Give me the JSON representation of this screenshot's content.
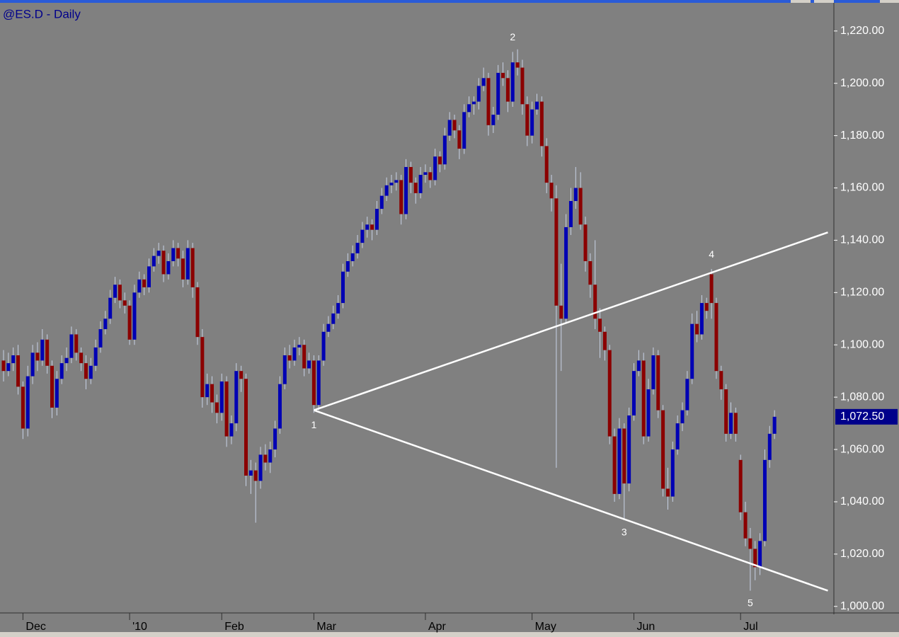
{
  "chart_data": {
    "type": "candlestick",
    "title": "@ES.D - Daily",
    "categories": [
      null,
      null,
      null,
      null,
      "Dec",
      null,
      null,
      null,
      null,
      null,
      null,
      null,
      null,
      null,
      null,
      null,
      null,
      null,
      null,
      null,
      null,
      null,
      null,
      null,
      null,
      null,
      "'10",
      null,
      null,
      null,
      null,
      null,
      null,
      null,
      null,
      null,
      null,
      null,
      null,
      null,
      null,
      null,
      null,
      null,
      null,
      "Feb",
      null,
      null,
      null,
      null,
      null,
      null,
      null,
      null,
      null,
      null,
      null,
      null,
      null,
      null,
      null,
      null,
      null,
      null,
      "Mar",
      null,
      null,
      null,
      null,
      null,
      null,
      null,
      null,
      null,
      null,
      null,
      null,
      null,
      null,
      null,
      null,
      null,
      null,
      null,
      null,
      null,
      null,
      "Apr",
      null,
      null,
      null,
      null,
      null,
      null,
      null,
      null,
      null,
      null,
      null,
      null,
      null,
      null,
      null,
      null,
      null,
      null,
      null,
      null,
      null,
      "May",
      null,
      null,
      null,
      null,
      null,
      null,
      null,
      null,
      null,
      null,
      null,
      null,
      null,
      null,
      null,
      null,
      null,
      null,
      null,
      null,
      "Jun",
      null,
      null,
      null,
      null,
      null,
      null,
      null,
      null,
      null,
      null,
      null,
      null,
      null,
      null,
      null,
      null,
      null,
      null,
      null,
      null,
      null,
      "Jul",
      null,
      null,
      null,
      null,
      null,
      null,
      null
    ],
    "ohlc": [
      [
        1094,
        1098,
        1086,
        1090
      ],
      [
        1090,
        1097,
        1088,
        1093
      ],
      [
        1093,
        1099,
        1090,
        1096
      ],
      [
        1096,
        1100,
        1081,
        1084
      ],
      [
        1084,
        1086,
        1064,
        1068
      ],
      [
        1068,
        1092,
        1065,
        1088
      ],
      [
        1088,
        1100,
        1085,
        1097
      ],
      [
        1097,
        1101,
        1090,
        1094
      ],
      [
        1094,
        1106,
        1092,
        1102
      ],
      [
        1102,
        1104,
        1089,
        1092
      ],
      [
        1092,
        1094,
        1072,
        1076
      ],
      [
        1076,
        1090,
        1073,
        1087
      ],
      [
        1087,
        1096,
        1085,
        1093
      ],
      [
        1093,
        1099,
        1090,
        1095
      ],
      [
        1095,
        1107,
        1093,
        1104
      ],
      [
        1104,
        1106,
        1094,
        1097
      ],
      [
        1097,
        1099,
        1090,
        1093
      ],
      [
        1093,
        1096,
        1083,
        1087
      ],
      [
        1087,
        1095,
        1085,
        1092
      ],
      [
        1092,
        1102,
        1090,
        1099
      ],
      [
        1099,
        1109,
        1097,
        1106
      ],
      [
        1106,
        1113,
        1104,
        1110
      ],
      [
        1110,
        1121,
        1108,
        1118
      ],
      [
        1118,
        1126,
        1116,
        1123
      ],
      [
        1123,
        1125,
        1114,
        1117
      ],
      [
        1117,
        1120,
        1112,
        1115
      ],
      [
        1115,
        1117,
        1100,
        1102
      ],
      [
        1102,
        1123,
        1100,
        1120
      ],
      [
        1120,
        1128,
        1118,
        1125
      ],
      [
        1125,
        1127,
        1119,
        1122
      ],
      [
        1122,
        1133,
        1120,
        1130
      ],
      [
        1130,
        1137,
        1128,
        1134
      ],
      [
        1134,
        1139,
        1131,
        1136
      ],
      [
        1136,
        1138,
        1124,
        1127
      ],
      [
        1127,
        1135,
        1125,
        1132
      ],
      [
        1132,
        1140,
        1130,
        1137
      ],
      [
        1137,
        1139,
        1130,
        1133
      ],
      [
        1133,
        1136,
        1122,
        1125
      ],
      [
        1125,
        1140,
        1123,
        1137
      ],
      [
        1137,
        1139,
        1118,
        1122
      ],
      [
        1122,
        1124,
        1100,
        1103
      ],
      [
        1103,
        1106,
        1076,
        1080
      ],
      [
        1080,
        1089,
        1077,
        1085
      ],
      [
        1085,
        1088,
        1074,
        1078
      ],
      [
        1078,
        1081,
        1070,
        1074
      ],
      [
        1074,
        1089,
        1071,
        1086
      ],
      [
        1086,
        1088,
        1061,
        1065
      ],
      [
        1065,
        1073,
        1062,
        1070
      ],
      [
        1070,
        1093,
        1067,
        1090
      ],
      [
        1090,
        1092,
        1082,
        1087
      ],
      [
        1087,
        1089,
        1046,
        1050
      ],
      [
        1050,
        1056,
        1043,
        1052
      ],
      [
        1052,
        1055,
        1032,
        1048
      ],
      [
        1048,
        1061,
        1045,
        1058
      ],
      [
        1058,
        1062,
        1052,
        1055
      ],
      [
        1055,
        1063,
        1051,
        1060
      ],
      [
        1060,
        1071,
        1057,
        1068
      ],
      [
        1068,
        1088,
        1066,
        1085
      ],
      [
        1085,
        1099,
        1083,
        1096
      ],
      [
        1096,
        1100,
        1091,
        1094
      ],
      [
        1094,
        1102,
        1092,
        1099
      ],
      [
        1099,
        1103,
        1096,
        1100
      ],
      [
        1100,
        1102,
        1088,
        1091
      ],
      [
        1091,
        1097,
        1089,
        1094
      ],
      [
        1094,
        1096,
        1074,
        1077
      ],
      [
        1077,
        1096,
        1075,
        1094
      ],
      [
        1094,
        1108,
        1092,
        1105
      ],
      [
        1105,
        1111,
        1103,
        1108
      ],
      [
        1108,
        1115,
        1106,
        1112
      ],
      [
        1112,
        1119,
        1110,
        1116
      ],
      [
        1116,
        1131,
        1114,
        1128
      ],
      [
        1128,
        1135,
        1126,
        1132
      ],
      [
        1132,
        1138,
        1130,
        1135
      ],
      [
        1135,
        1142,
        1133,
        1139
      ],
      [
        1139,
        1147,
        1137,
        1144
      ],
      [
        1144,
        1149,
        1141,
        1146
      ],
      [
        1146,
        1148,
        1140,
        1144
      ],
      [
        1144,
        1155,
        1142,
        1152
      ],
      [
        1152,
        1160,
        1150,
        1157
      ],
      [
        1157,
        1164,
        1155,
        1161
      ],
      [
        1161,
        1165,
        1158,
        1162
      ],
      [
        1162,
        1166,
        1159,
        1163
      ],
      [
        1163,
        1165,
        1146,
        1150
      ],
      [
        1150,
        1171,
        1148,
        1168
      ],
      [
        1168,
        1170,
        1158,
        1162
      ],
      [
        1162,
        1164,
        1154,
        1158
      ],
      [
        1158,
        1168,
        1156,
        1165
      ],
      [
        1165,
        1169,
        1162,
        1166
      ],
      [
        1166,
        1168,
        1160,
        1163
      ],
      [
        1163,
        1175,
        1161,
        1172
      ],
      [
        1172,
        1174,
        1166,
        1169
      ],
      [
        1169,
        1183,
        1167,
        1180
      ],
      [
        1180,
        1189,
        1178,
        1186
      ],
      [
        1186,
        1188,
        1179,
        1182
      ],
      [
        1182,
        1184,
        1171,
        1175
      ],
      [
        1175,
        1192,
        1173,
        1189
      ],
      [
        1189,
        1195,
        1187,
        1192
      ],
      [
        1192,
        1195,
        1188,
        1193
      ],
      [
        1193,
        1202,
        1190,
        1199
      ],
      [
        1199,
        1206,
        1197,
        1202
      ],
      [
        1202,
        1204,
        1180,
        1184
      ],
      [
        1184,
        1191,
        1181,
        1188
      ],
      [
        1188,
        1207,
        1186,
        1204
      ],
      [
        1204,
        1208,
        1199,
        1202
      ],
      [
        1202,
        1205,
        1189,
        1193
      ],
      [
        1193,
        1212,
        1191,
        1208
      ],
      [
        1208,
        1213,
        1203,
        1206
      ],
      [
        1206,
        1209,
        1188,
        1192
      ],
      [
        1192,
        1195,
        1176,
        1180
      ],
      [
        1180,
        1193,
        1177,
        1190
      ],
      [
        1190,
        1196,
        1188,
        1193
      ],
      [
        1193,
        1195,
        1172,
        1176
      ],
      [
        1176,
        1179,
        1158,
        1162
      ],
      [
        1162,
        1165,
        1151,
        1156
      ],
      [
        1156,
        1161,
        1053,
        1115
      ],
      [
        1115,
        1131,
        1090,
        1110
      ],
      [
        1110,
        1150,
        1108,
        1145
      ],
      [
        1145,
        1160,
        1142,
        1155
      ],
      [
        1155,
        1168,
        1152,
        1160
      ],
      [
        1160,
        1166,
        1144,
        1146
      ],
      [
        1146,
        1149,
        1128,
        1132
      ],
      [
        1132,
        1135,
        1118,
        1123
      ],
      [
        1123,
        1140,
        1106,
        1110
      ],
      [
        1110,
        1114,
        1095,
        1105
      ],
      [
        1105,
        1107,
        1094,
        1098
      ],
      [
        1098,
        1100,
        1062,
        1065
      ],
      [
        1065,
        1068,
        1040,
        1043
      ],
      [
        1043,
        1072,
        1041,
        1068
      ],
      [
        1068,
        1070,
        1033,
        1047
      ],
      [
        1047,
        1076,
        1044,
        1073
      ],
      [
        1073,
        1093,
        1071,
        1090
      ],
      [
        1090,
        1098,
        1088,
        1094
      ],
      [
        1094,
        1097,
        1062,
        1065
      ],
      [
        1065,
        1087,
        1063,
        1083
      ],
      [
        1083,
        1099,
        1081,
        1096
      ],
      [
        1096,
        1098,
        1072,
        1075
      ],
      [
        1075,
        1077,
        1042,
        1045
      ],
      [
        1045,
        1053,
        1037,
        1042
      ],
      [
        1042,
        1063,
        1040,
        1060
      ],
      [
        1060,
        1073,
        1058,
        1070
      ],
      [
        1070,
        1078,
        1067,
        1075
      ],
      [
        1075,
        1090,
        1073,
        1087
      ],
      [
        1087,
        1112,
        1085,
        1108
      ],
      [
        1108,
        1113,
        1101,
        1104
      ],
      [
        1104,
        1119,
        1102,
        1116
      ],
      [
        1116,
        1118,
        1110,
        1113
      ],
      [
        1127,
        1129,
        1110,
        1116
      ],
      [
        1116,
        1118,
        1087,
        1090
      ],
      [
        1090,
        1092,
        1079,
        1083
      ],
      [
        1083,
        1085,
        1063,
        1066
      ],
      [
        1066,
        1078,
        1064,
        1074
      ],
      [
        1074,
        1076,
        1063,
        1066
      ],
      [
        1056,
        1058,
        1033,
        1036
      ],
      [
        1036,
        1040,
        1023,
        1026
      ],
      [
        1026,
        1030,
        1006,
        1022
      ],
      [
        1022,
        1025,
        1010,
        1015
      ],
      [
        1015,
        1028,
        1012,
        1025
      ],
      [
        1025,
        1060,
        1023,
        1056
      ],
      [
        1056,
        1069,
        1053,
        1066
      ],
      [
        1066,
        1075,
        1064,
        1072.5
      ]
    ],
    "up_color": "#0000b4",
    "down_color": "#8b0000",
    "wick_color": "#c8d2e6",
    "ylim": [
      997.5,
      1230.5
    ],
    "yticks": [
      {
        "value": 1000,
        "label": "1,000.00"
      },
      {
        "value": 1020,
        "label": "1,020.00"
      },
      {
        "value": 1040,
        "label": "1,040.00"
      },
      {
        "value": 1060,
        "label": "1,060.00"
      },
      {
        "value": 1080,
        "label": "1,080.00"
      },
      {
        "value": 1100,
        "label": "1,100.00"
      },
      {
        "value": 1120,
        "label": "1,120.00"
      },
      {
        "value": 1140,
        "label": "1,140.00"
      },
      {
        "value": 1160,
        "label": "1,160.00"
      },
      {
        "value": 1180,
        "label": "1,180.00"
      },
      {
        "value": 1200,
        "label": "1,200.00"
      },
      {
        "value": 1220,
        "label": "1,220.00"
      }
    ],
    "last_price": {
      "value": 1072.5,
      "label": "1,072.50"
    },
    "trendlines": [
      {
        "from": [
          64,
          1075
        ],
        "to": [
          170,
          1143
        ],
        "color": "#ffffff"
      },
      {
        "from": [
          64,
          1075
        ],
        "to": [
          170,
          1006
        ],
        "color": "#ffffff"
      }
    ],
    "annotations": [
      {
        "text": "1",
        "index": 64,
        "position": "below"
      },
      {
        "text": "2",
        "index": 105,
        "position": "above"
      },
      {
        "text": "3",
        "index": 128,
        "position": "below"
      },
      {
        "text": "4",
        "index": 146,
        "position": "above"
      },
      {
        "text": "5",
        "index": 154,
        "position": "below"
      }
    ]
  }
}
